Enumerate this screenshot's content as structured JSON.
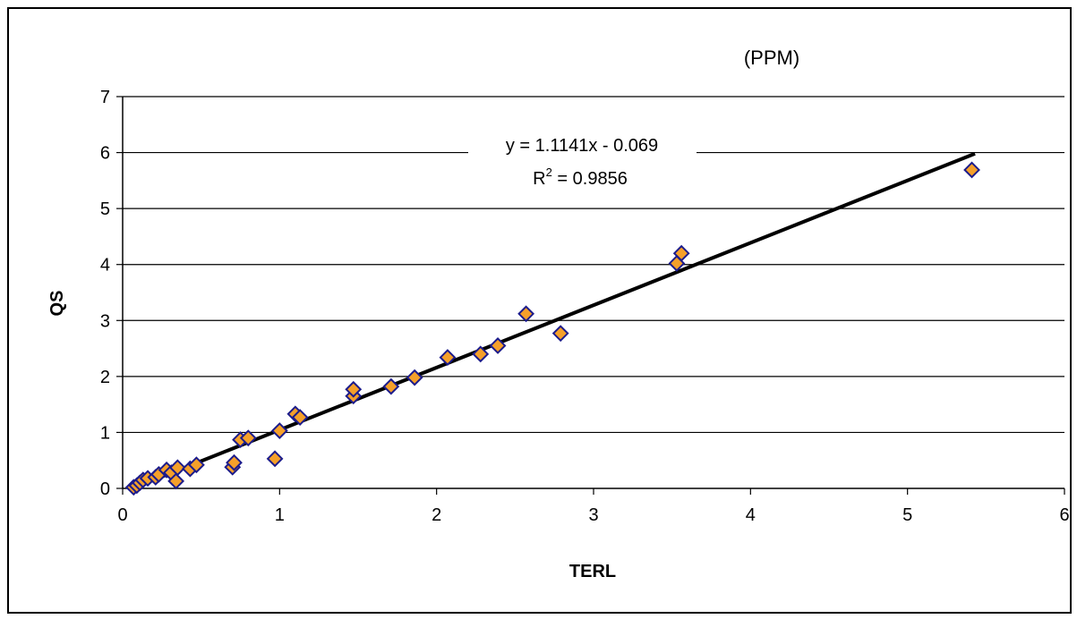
{
  "chart_data": {
    "type": "scatter",
    "title": "",
    "unit_label": "(PPM)",
    "xlabel": "TERL",
    "ylabel": "QS",
    "xlim": [
      0,
      6
    ],
    "ylim": [
      0,
      7
    ],
    "x_ticks": [
      "0",
      "1",
      "2",
      "3",
      "4",
      "5",
      "6"
    ],
    "y_ticks": [
      "0",
      "1",
      "2",
      "3",
      "4",
      "5",
      "6",
      "7"
    ],
    "grid": "horizontal",
    "legend": "none",
    "series": [
      {
        "points": [
          [
            0.07,
            0.02
          ],
          [
            0.09,
            0.05
          ],
          [
            0.11,
            0.1
          ],
          [
            0.13,
            0.15
          ],
          [
            0.16,
            0.18
          ],
          [
            0.21,
            0.2
          ],
          [
            0.23,
            0.25
          ],
          [
            0.28,
            0.33
          ],
          [
            0.31,
            0.28
          ],
          [
            0.34,
            0.13
          ],
          [
            0.35,
            0.37
          ],
          [
            0.43,
            0.35
          ],
          [
            0.47,
            0.42
          ],
          [
            0.7,
            0.38
          ],
          [
            0.71,
            0.46
          ],
          [
            0.75,
            0.87
          ],
          [
            0.8,
            0.9
          ],
          [
            0.97,
            0.53
          ],
          [
            1.0,
            1.03
          ],
          [
            1.1,
            1.33
          ],
          [
            1.13,
            1.27
          ],
          [
            1.47,
            1.65
          ],
          [
            1.47,
            1.77
          ],
          [
            1.71,
            1.82
          ],
          [
            1.86,
            1.98
          ],
          [
            2.07,
            2.34
          ],
          [
            2.28,
            2.4
          ],
          [
            2.39,
            2.55
          ],
          [
            2.57,
            3.12
          ],
          [
            2.79,
            2.77
          ],
          [
            3.53,
            4.02
          ],
          [
            3.56,
            4.2
          ],
          [
            5.41,
            5.69
          ]
        ],
        "marker_fill": "#f5a02a",
        "marker_stroke": "#1c1c8c"
      }
    ],
    "trendline": {
      "slope": 1.1141,
      "intercept": -0.069,
      "x_range": [
        0.07,
        5.43
      ],
      "equation": "y = 1.1141x - 0.069",
      "r2_prefix": "R",
      "r2_sup": "2",
      "r2_value": " = 0.9856",
      "color": "#000000"
    }
  }
}
